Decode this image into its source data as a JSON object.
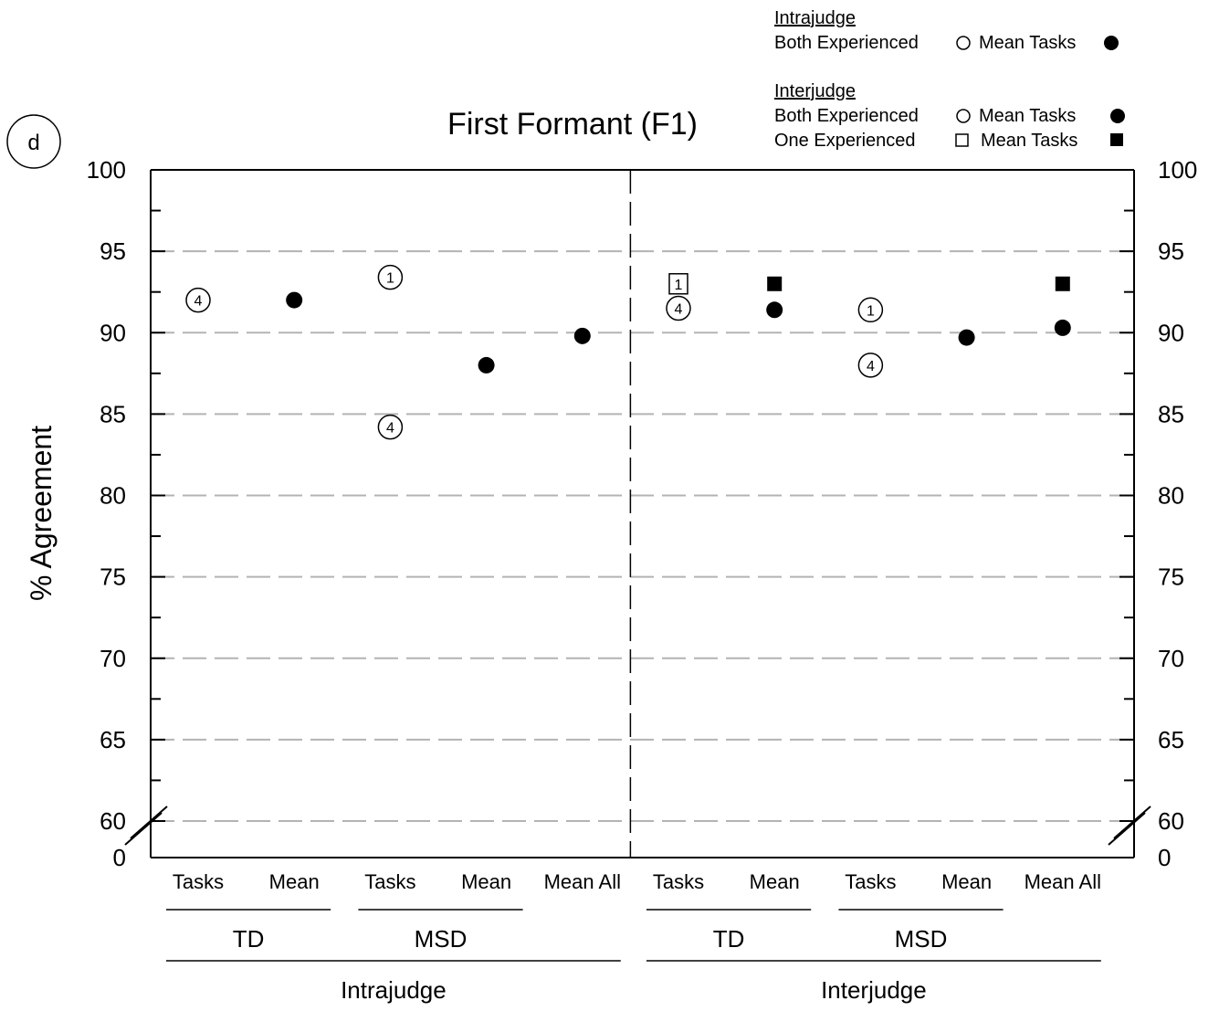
{
  "panel_letter": "d",
  "legend": {
    "intrajudge_heading": "Intrajudge",
    "intrajudge_rows": [
      {
        "label": "Both Experienced",
        "open_marker": "circle",
        "mean_label": "Mean Tasks",
        "filled_marker": "circle"
      }
    ],
    "interjudge_heading": "Interjudge",
    "interjudge_rows": [
      {
        "label": "Both Experienced",
        "open_marker": "circle",
        "mean_label": "Mean Tasks",
        "filled_marker": "circle"
      },
      {
        "label": "One Experienced",
        "open_marker": "square",
        "mean_label": "Mean Tasks",
        "filled_marker": "square"
      }
    ]
  },
  "chart_data": {
    "type": "scatter",
    "title": "First Formant (F1)",
    "ylabel": "% Agreement",
    "ylim": [
      60,
      100
    ],
    "axis_break": {
      "from": 0,
      "to": 60
    },
    "y_ticks": [
      100,
      95,
      90,
      85,
      80,
      75,
      70,
      65,
      60,
      0
    ],
    "grid": true,
    "categories": [
      "Tasks",
      "Mean",
      "Tasks",
      "Mean",
      "Mean All",
      "Tasks",
      "Mean",
      "Tasks",
      "Mean",
      "Mean All"
    ],
    "subgroups": [
      {
        "label": "TD",
        "from": 0,
        "to": 1
      },
      {
        "label": "MSD",
        "from": 2,
        "to": 3
      },
      {
        "label": "TD",
        "from": 5,
        "to": 6
      },
      {
        "label": "MSD",
        "from": 7,
        "to": 8
      }
    ],
    "groups": [
      {
        "label": "Intrajudge",
        "from": 0,
        "to": 4
      },
      {
        "label": "Interjudge",
        "from": 5,
        "to": 9
      }
    ],
    "divider_after_category": 4,
    "series": [
      {
        "name": "Both Experienced",
        "marker": "open-circle",
        "points": [
          {
            "x": 0,
            "y": 92.0,
            "label": "4"
          },
          {
            "x": 2,
            "y": 93.4,
            "label": "1"
          },
          {
            "x": 2,
            "y": 84.2,
            "label": "4"
          },
          {
            "x": 5,
            "y": 91.5,
            "label": "4"
          },
          {
            "x": 7,
            "y": 91.4,
            "label": "1"
          },
          {
            "x": 7,
            "y": 88.0,
            "label": "4"
          }
        ]
      },
      {
        "name": "Mean Tasks",
        "marker": "filled-circle",
        "points": [
          {
            "x": 1,
            "y": 92.0
          },
          {
            "x": 3,
            "y": 88.0
          },
          {
            "x": 4,
            "y": 89.8
          },
          {
            "x": 6,
            "y": 91.4
          },
          {
            "x": 8,
            "y": 89.7
          },
          {
            "x": 9,
            "y": 90.3
          }
        ]
      },
      {
        "name": "One Experienced",
        "marker": "open-square",
        "points": [
          {
            "x": 5,
            "y": 93.0,
            "label": "1"
          }
        ]
      },
      {
        "name": "Mean Tasks",
        "marker": "filled-square",
        "points": [
          {
            "x": 6,
            "y": 93.0
          },
          {
            "x": 9,
            "y": 93.0
          }
        ]
      }
    ]
  }
}
